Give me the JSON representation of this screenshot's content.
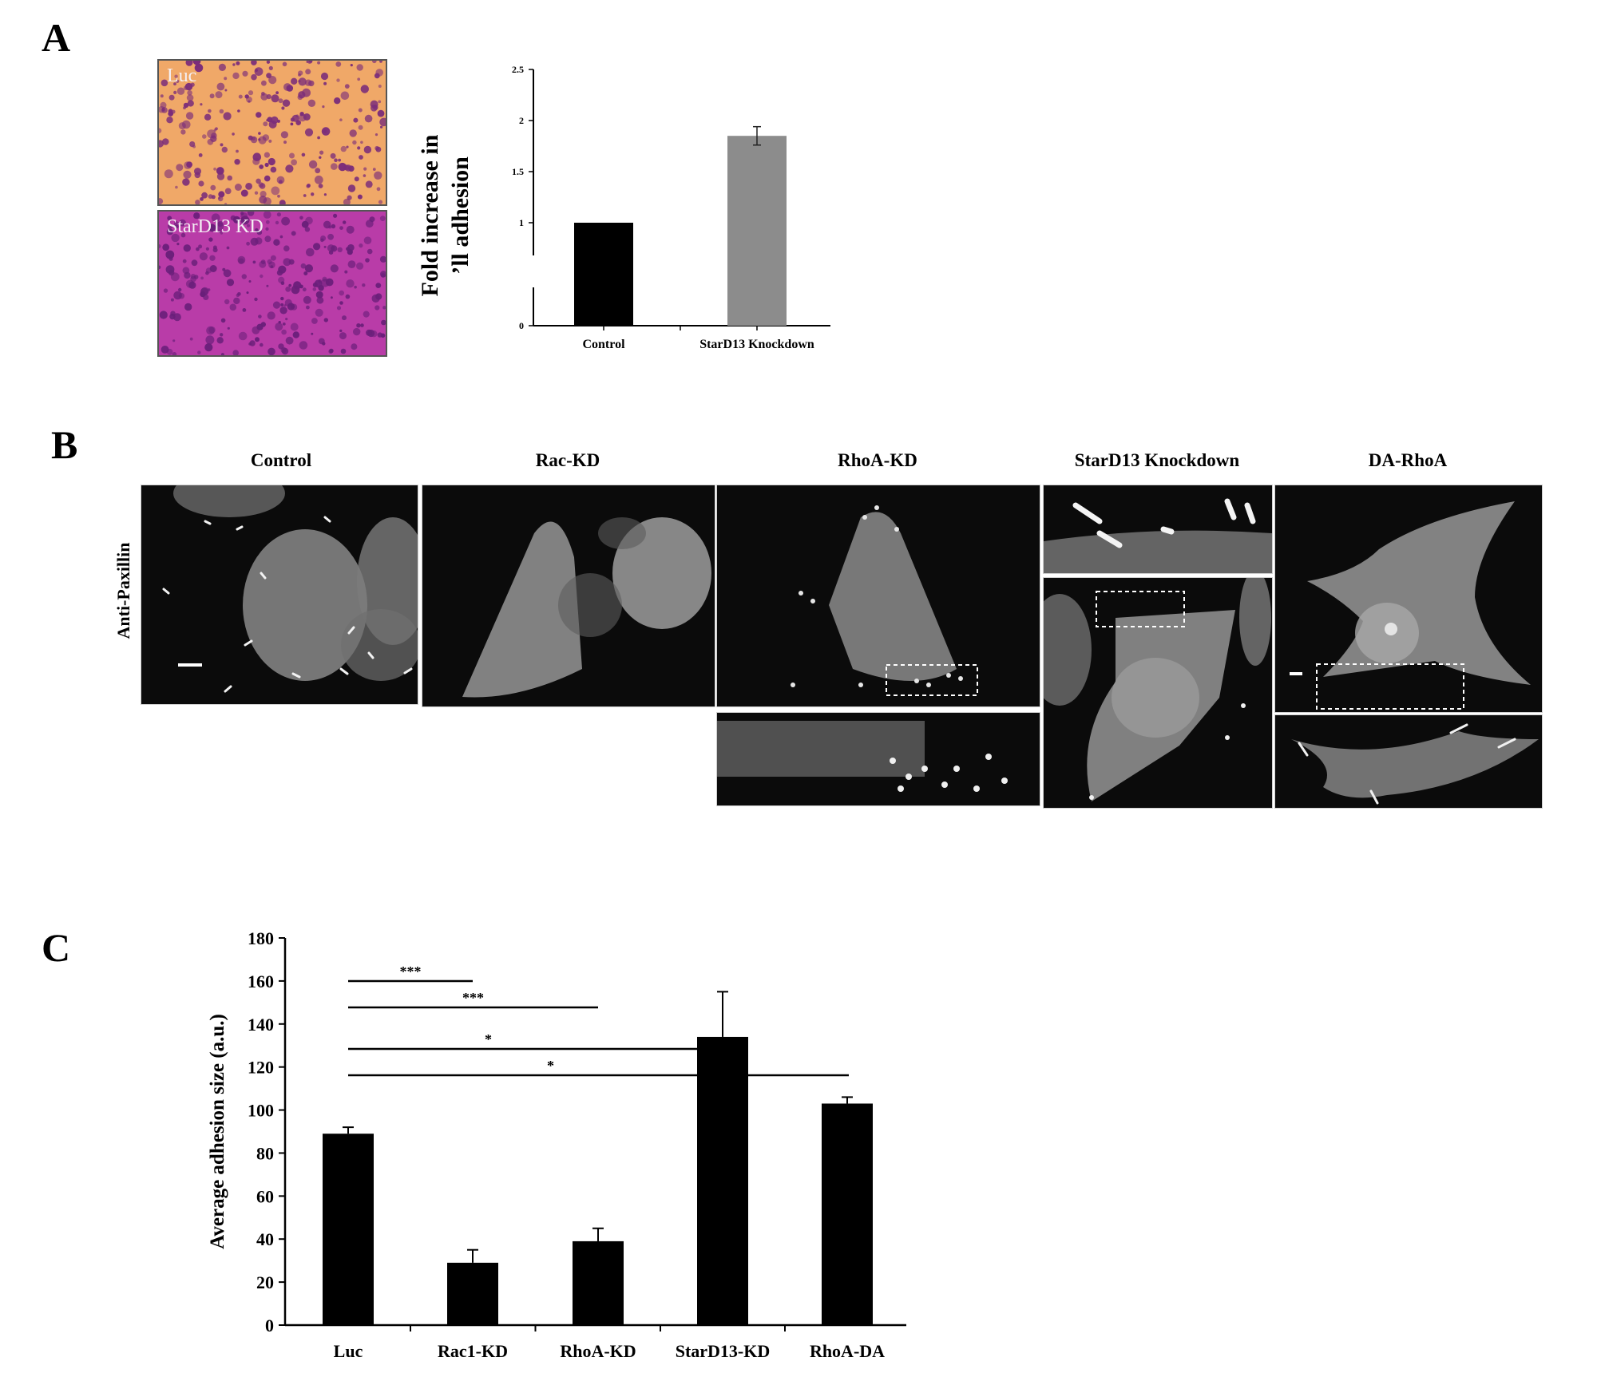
{
  "panel_labels": {
    "a": "A",
    "b": "B",
    "c": "C"
  },
  "panel_a": {
    "micrographs": [
      {
        "label": "Luc",
        "bg": "#f0a868",
        "cell": "#7b2d7a"
      },
      {
        "label": "StarD13 KD",
        "bg": "#b93ca8",
        "cell": "#6a1f7a"
      }
    ]
  },
  "panel_b": {
    "columns": [
      "Control",
      "Rac-KD",
      "RhoA-KD",
      "StarD13 Knockdown",
      "DA-RhoA"
    ],
    "row_label": "Anti-Paxillin"
  },
  "chart_data": [
    {
      "type": "bar",
      "categories": [
        "Control",
        "StarD13 Knockdown"
      ],
      "values": [
        1.0,
        1.85
      ],
      "errors": [
        0.0,
        0.09
      ],
      "colors": [
        "#000000",
        "#8c8c8c"
      ],
      "title": "",
      "xlabel": "",
      "ylabel_lines": [
        "Fold increase in",
        "’ll adhesion"
      ],
      "ylim": [
        0,
        2.5
      ],
      "yticks": [
        "0",
        "1",
        "1.5",
        "2",
        "2.5"
      ],
      "axis_break": true,
      "grid": false
    },
    {
      "type": "bar",
      "categories": [
        "Luc",
        "Rac1-KD",
        "RhoA-KD",
        "StarD13-KD",
        "RhoA-DA"
      ],
      "values": [
        89,
        29,
        39,
        134,
        103
      ],
      "errors": [
        3,
        6,
        6,
        21,
        3
      ],
      "colors": [
        "#000000",
        "#000000",
        "#000000",
        "#000000",
        "#000000"
      ],
      "title": "",
      "xlabel": "",
      "ylabel": "Average adhesion size (a.u.)",
      "ylim": [
        0,
        180
      ],
      "yticks": [
        "0",
        "20",
        "40",
        "60",
        "80",
        "100",
        "120",
        "140",
        "160",
        "180"
      ],
      "significance": [
        {
          "from": "Luc",
          "to": "Rac1-KD",
          "label": "***"
        },
        {
          "from": "Luc",
          "to": "RhoA-KD",
          "label": "***"
        },
        {
          "from": "Luc",
          "to": "StarD13-KD",
          "label": "*"
        },
        {
          "from": "Luc",
          "to": "RhoA-DA",
          "label": "*"
        }
      ],
      "grid": false
    }
  ]
}
